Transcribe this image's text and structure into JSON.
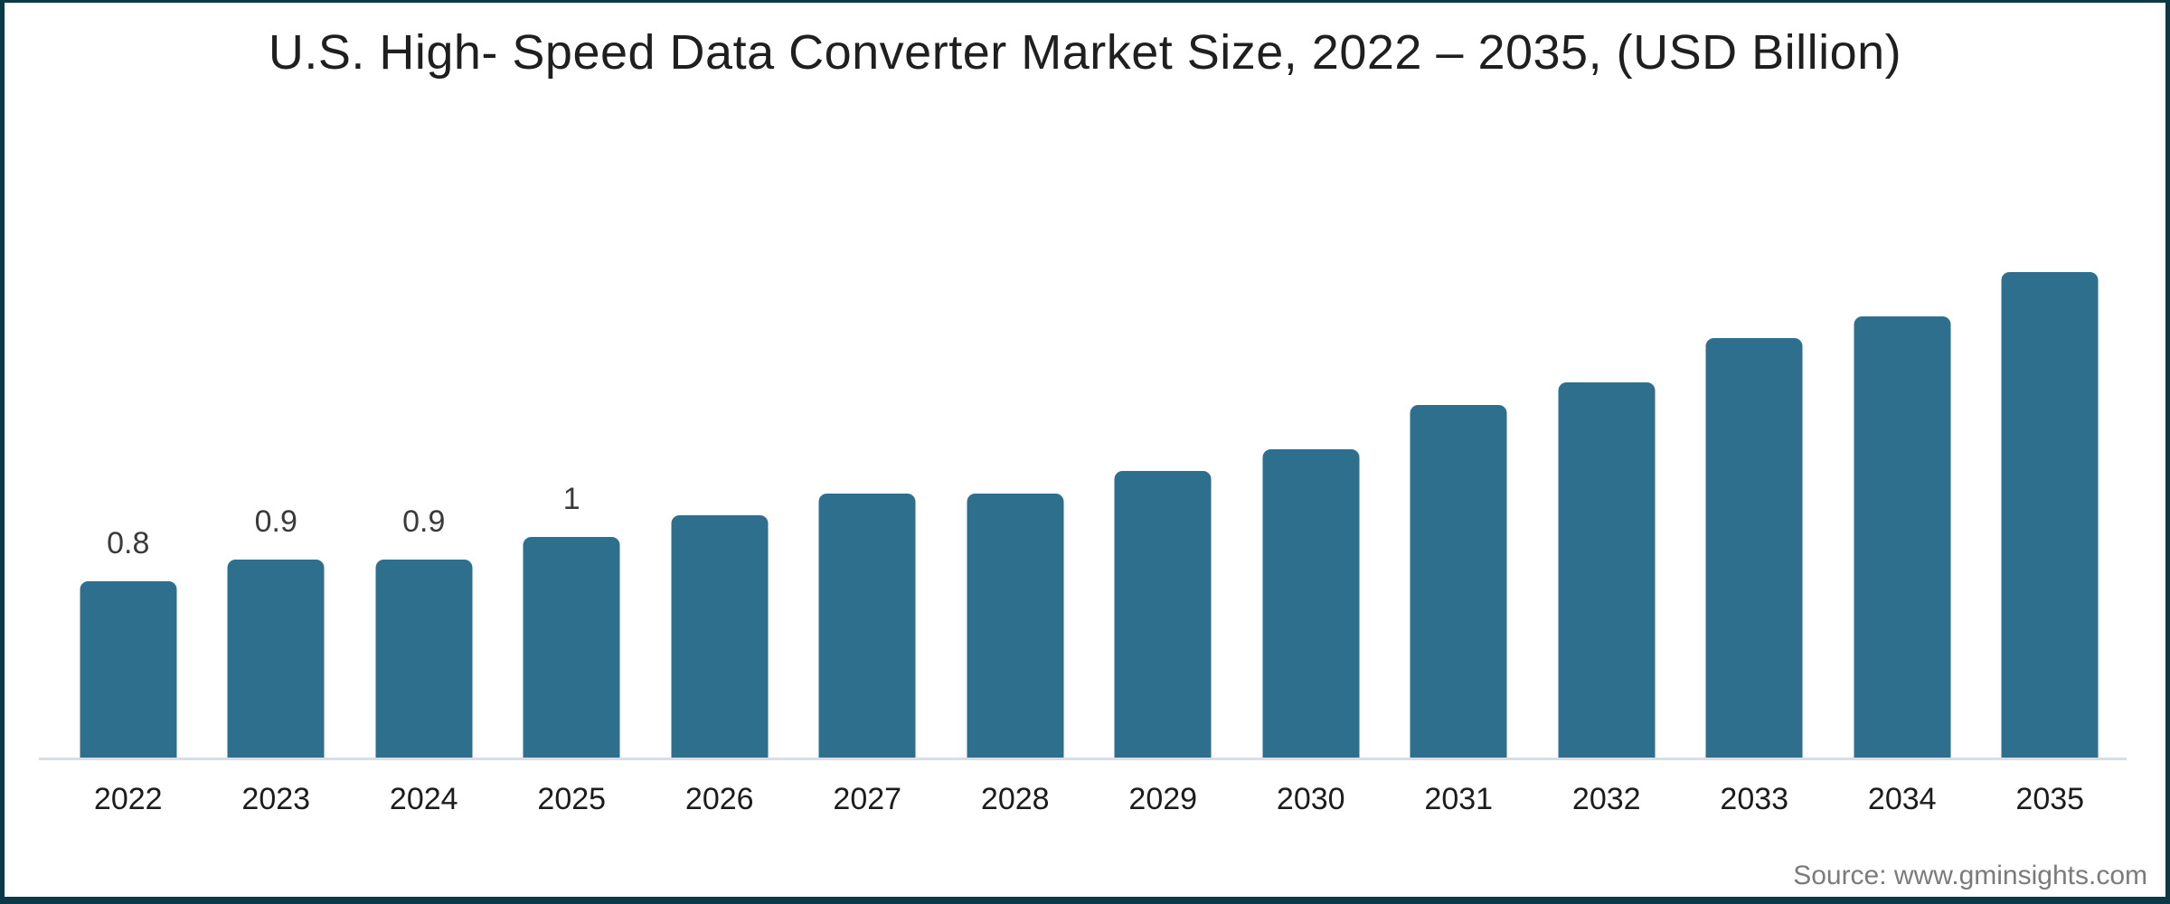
{
  "title": "U.S. High- Speed Data Converter Market Size, 2022 – 2035, (USD Billion)",
  "source": "Source: www.gminsights.com",
  "colors": {
    "bar": "#2F6F8E",
    "frame": "#0B3948",
    "axis_line": "#D9DDE8",
    "title_text": "#1F1F1F",
    "source_text": "#7B7B7B"
  },
  "chart_data": {
    "type": "bar",
    "title": "U.S. High- Speed Data Converter Market Size, 2022 – 2035, (USD Billion)",
    "categories": [
      "2022",
      "2023",
      "2024",
      "2025",
      "2026",
      "2027",
      "2028",
      "2029",
      "2030",
      "2031",
      "2032",
      "2033",
      "2034",
      "2035"
    ],
    "values": [
      0.8,
      0.9,
      0.9,
      1.0,
      1.1,
      1.2,
      1.2,
      1.3,
      1.4,
      1.6,
      1.7,
      1.9,
      2.0,
      2.2
    ],
    "data_labels": [
      "0.8",
      "0.9",
      "0.9",
      "1",
      "",
      "",
      "",
      "",
      "",
      "",
      "",
      "",
      "",
      ""
    ],
    "xlabel": "",
    "ylabel": "",
    "ylim": [
      0,
      2.4
    ],
    "grid": "off",
    "legend": "none",
    "y_axis_visible": false,
    "baseline_axis": "x"
  }
}
